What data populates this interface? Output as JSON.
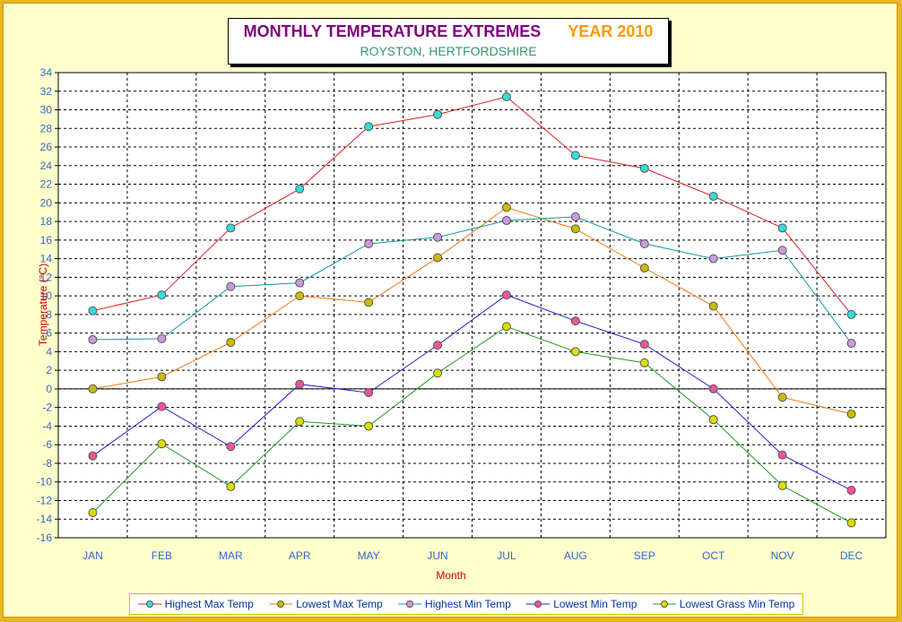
{
  "title": "MONTHLY TEMPERATURE EXTREMES",
  "year_label": "YEAR  2010",
  "subtitle": "ROYSTON, HERTFORDSHIRE",
  "chart_data": {
    "type": "line",
    "title": "MONTHLY TEMPERATURE EXTREMES    YEAR  2010",
    "subtitle": "ROYSTON, HERTFORDSHIRE",
    "xlabel": "Month",
    "ylabel": "Temperature (°C)",
    "ylim": [
      -16,
      34
    ],
    "ytick_step": 2,
    "grid": true,
    "legend": "bottom",
    "categories": [
      "JAN",
      "FEB",
      "MAR",
      "APR",
      "MAY",
      "JUN",
      "JUL",
      "AUG",
      "SEP",
      "OCT",
      "NOV",
      "DEC"
    ],
    "series": [
      {
        "name": "Highest Max Temp",
        "line_color": "#dd2222",
        "marker_color": "#33dddd",
        "values": [
          8.4,
          10.1,
          17.3,
          21.5,
          28.2,
          29.5,
          31.4,
          25.1,
          23.7,
          20.7,
          17.3,
          8.0
        ]
      },
      {
        "name": "Lowest Max Temp",
        "line_color": "#ee7711",
        "marker_color": "#ccbb00",
        "values": [
          0.0,
          1.3,
          5.0,
          10.0,
          9.3,
          14.1,
          19.5,
          17.2,
          13.0,
          8.9,
          -0.9,
          -2.7
        ]
      },
      {
        "name": "Highest Min Temp",
        "line_color": "#119999",
        "marker_color": "#cc99dd",
        "values": [
          5.3,
          5.4,
          11.0,
          11.4,
          15.6,
          16.3,
          18.1,
          18.5,
          15.6,
          14.0,
          14.9,
          4.9
        ]
      },
      {
        "name": "Lowest Min Temp",
        "line_color": "#2222cc",
        "marker_color": "#ee5599",
        "values": [
          -7.2,
          -1.9,
          -6.2,
          0.5,
          -0.4,
          4.7,
          10.1,
          7.3,
          4.8,
          0.0,
          -7.1,
          -10.9
        ]
      },
      {
        "name": "Lowest Grass Min Temp",
        "line_color": "#229922",
        "marker_color": "#dddd00",
        "values": [
          -13.3,
          -5.9,
          -10.5,
          -3.5,
          -4.0,
          1.7,
          6.7,
          4.0,
          2.8,
          -3.3,
          -10.4,
          -14.4
        ]
      }
    ]
  }
}
